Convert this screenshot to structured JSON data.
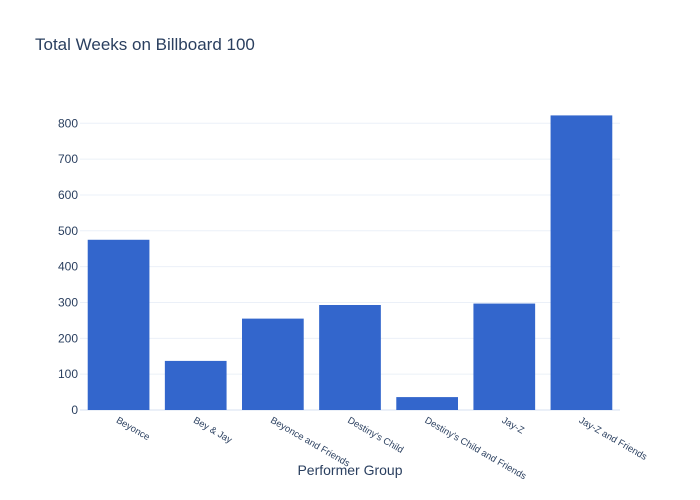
{
  "chart_data": {
    "type": "bar",
    "title": "Total Weeks on Billboard 100",
    "xlabel": "Performer Group",
    "ylabel": "",
    "categories": [
      "Beyonce",
      "Bey & Jay",
      "Beyonce and Friends",
      "Destiny's Child",
      "Destiny's Child and Friends",
      "Jay-Z",
      "Jay-Z and Friends"
    ],
    "values": [
      475,
      137,
      255,
      293,
      36,
      297,
      822
    ],
    "ylim": [
      0,
      865
    ],
    "yticks": [
      0,
      100,
      200,
      300,
      400,
      500,
      600,
      700,
      800
    ],
    "grid": true,
    "bar_color": "#3366cc"
  }
}
